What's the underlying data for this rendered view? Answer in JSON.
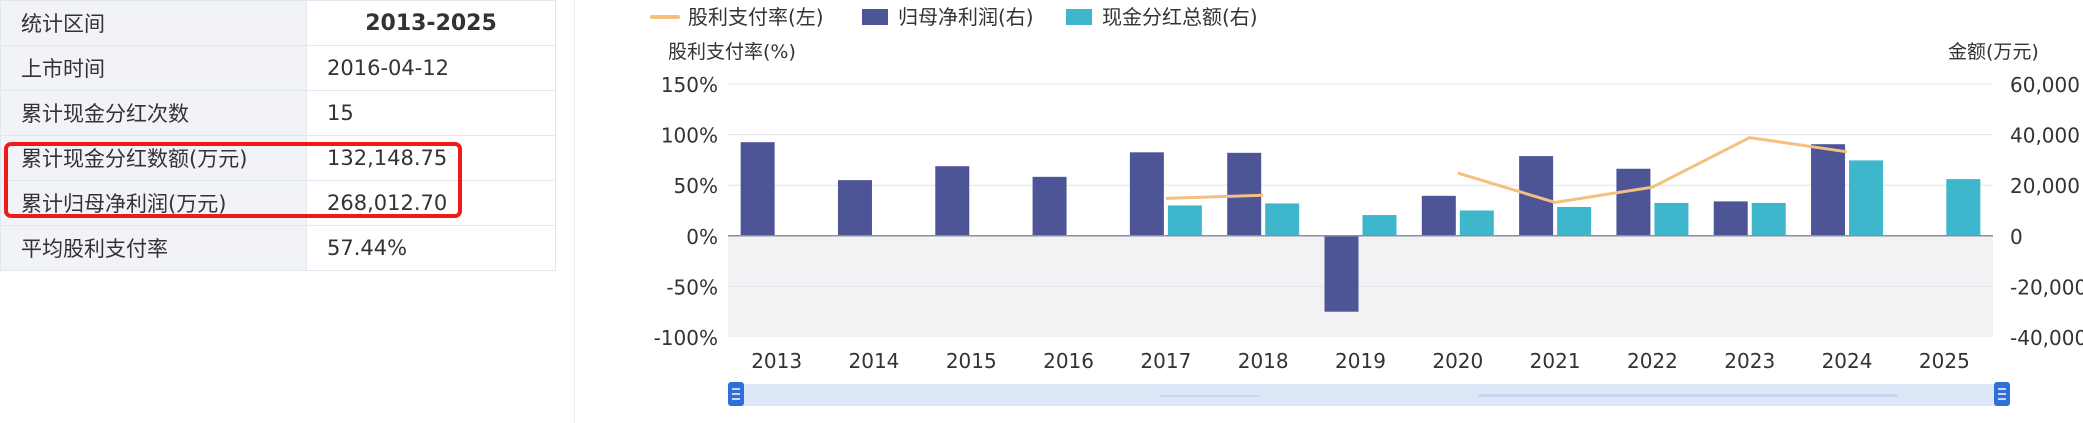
{
  "table": {
    "rows": [
      {
        "label": "统计区间",
        "value": "2013-2025"
      },
      {
        "label": "上市时间",
        "value": "2016-04-12"
      },
      {
        "label": "累计现金分红次数",
        "value": "15"
      },
      {
        "label": "累计现金分红数额(万元)",
        "value": "132,148.75"
      },
      {
        "label": "累计归母净利润(万元)",
        "value": "268,012.70"
      },
      {
        "label": "平均股利支付率",
        "value": "57.44%"
      }
    ]
  },
  "chart_data": {
    "type": "bar",
    "categories": [
      "2013",
      "2014",
      "2015",
      "2016",
      "2017",
      "2018",
      "2019",
      "2020",
      "2021",
      "2022",
      "2023",
      "2024",
      "2025"
    ],
    "legend_position": "top",
    "left_axis": {
      "label": "股利支付率(%)",
      "ticks": [
        "150%",
        "100%",
        "50%",
        "0%",
        "-50%",
        "-100%"
      ],
      "range": [
        -100,
        150
      ]
    },
    "right_axis": {
      "label": "金额(万元)",
      "ticks": [
        "60,000",
        "40,000",
        "20,000",
        "0",
        "-20,000",
        "-40,000"
      ],
      "range": [
        -40000,
        60000
      ]
    },
    "series": [
      {
        "name": "股利支付率(左)",
        "type": "line",
        "axis": "left",
        "color": "#f5bf80",
        "values": [
          null,
          null,
          null,
          null,
          37,
          40,
          null,
          62,
          33,
          48,
          97,
          83,
          null
        ]
      },
      {
        "name": "归母净利润(右)",
        "type": "bar",
        "axis": "right",
        "color": "#4e5596",
        "values": [
          37000,
          22000,
          27500,
          23300,
          33000,
          32800,
          -30000,
          15800,
          31500,
          26500,
          13600,
          36200,
          null
        ]
      },
      {
        "name": "现金分红总额(右)",
        "type": "bar",
        "axis": "right",
        "color": "#3eb6cc",
        "values": [
          null,
          null,
          null,
          null,
          12000,
          12800,
          8200,
          10000,
          11400,
          13000,
          13000,
          29800,
          22400
        ]
      }
    ],
    "grid": true
  },
  "colors": {
    "highlight": "#ee1b1b",
    "zoom_track": "#dde7f8",
    "zoom_handle": "#2f6fd9"
  }
}
